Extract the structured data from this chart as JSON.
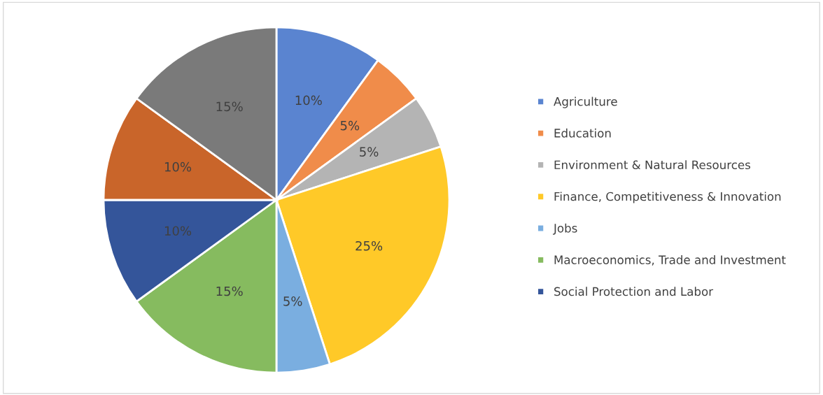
{
  "chart_data": {
    "type": "pie",
    "categories": [
      "Agriculture",
      "Education",
      "Environment & Natural Resources",
      "Finance, Competitiveness & Innovation",
      "Jobs",
      "Macroeconomics, Trade and Investment",
      "Social Protection and Labor",
      null,
      null
    ],
    "values": [
      10,
      5,
      5,
      25,
      5,
      15,
      10,
      10,
      15
    ],
    "value_labels": [
      "10%",
      "5%",
      "5%",
      "25%",
      "5%",
      "15%",
      "10%",
      "10%",
      "15%"
    ],
    "colors": [
      "#5a84d0",
      "#f08c4a",
      "#b4b4b4",
      "#ffc928",
      "#7aaee0",
      "#86bb5f",
      "#34559a",
      "#c9652a",
      "#7a7a7a"
    ],
    "legend": "right"
  }
}
